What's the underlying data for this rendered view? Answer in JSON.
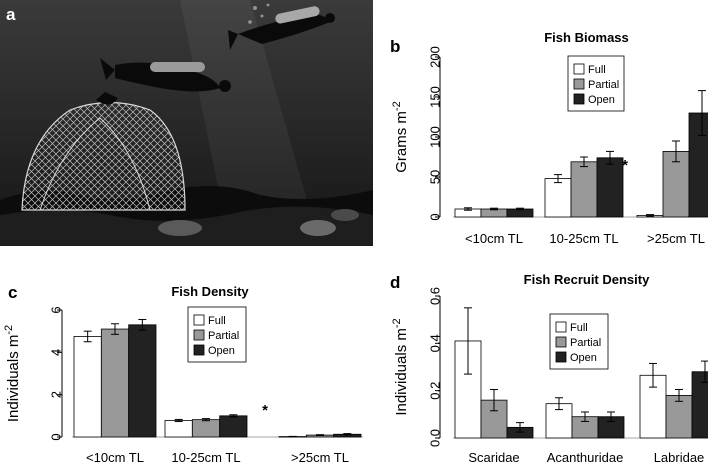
{
  "panels": {
    "a": "a",
    "b": "b",
    "c": "c",
    "d": "d"
  },
  "photo": {
    "description_icon": "underwater-divers-cage-photo"
  },
  "colors": {
    "full": "#ffffff",
    "partial": "#999999",
    "open": "#222222"
  },
  "chart_data": [
    {
      "id": "b",
      "type": "bar",
      "title": "Fish Biomass",
      "ylabel": "Grams m^-2",
      "ylim": [
        0,
        200
      ],
      "yticks": [
        0,
        50,
        100,
        150,
        200
      ],
      "categories": [
        "<10cm TL",
        "10-25cm TL",
        ">25cm TL"
      ],
      "legend": [
        "Full",
        "Partial",
        "Open"
      ],
      "legend_position": "top-left",
      "series": [
        {
          "name": "Full",
          "values": [
            10,
            48,
            2
          ],
          "err": [
            1.5,
            5,
            1
          ]
        },
        {
          "name": "Partial",
          "values": [
            10,
            69,
            82
          ],
          "err": [
            1,
            6,
            13
          ]
        },
        {
          "name": "Open",
          "values": [
            10,
            74,
            130
          ],
          "err": [
            1,
            8,
            28
          ]
        }
      ],
      "annotations": [
        {
          "text": "*",
          "category_index": 2
        }
      ]
    },
    {
      "id": "c",
      "type": "bar",
      "title": "Fish Density",
      "ylabel": "Individuals m^-2",
      "ylim": [
        0,
        6
      ],
      "yticks": [
        0,
        2,
        4,
        6
      ],
      "categories": [
        "<10cm TL",
        "10-25cm TL",
        ">25cm TL"
      ],
      "legend": [
        "Full",
        "Partial",
        "Open"
      ],
      "legend_position": "top-right",
      "series": [
        {
          "name": "Full",
          "values": [
            4.75,
            0.78,
            0.02
          ],
          "err": [
            0.25,
            0.05,
            0.01
          ]
        },
        {
          "name": "Partial",
          "values": [
            5.1,
            0.82,
            0.09
          ],
          "err": [
            0.25,
            0.05,
            0.02
          ]
        },
        {
          "name": "Open",
          "values": [
            5.3,
            1.0,
            0.13
          ],
          "err": [
            0.25,
            0.05,
            0.03
          ]
        }
      ],
      "annotations": [
        {
          "text": "*",
          "category_index": 2
        }
      ]
    },
    {
      "id": "d",
      "type": "bar",
      "title": "Fish Recruit Density",
      "ylabel": "Individuals m^-2",
      "ylim": [
        0,
        0.6
      ],
      "yticks": [
        0.0,
        0.2,
        0.4,
        0.6
      ],
      "categories": [
        "Scaridae",
        "Acanthuridae",
        "Labridae"
      ],
      "legend": [
        "Full",
        "Partial",
        "Open"
      ],
      "legend_position": "top-center",
      "series": [
        {
          "name": "Full",
          "values": [
            0.41,
            0.145,
            0.265
          ],
          "err": [
            0.14,
            0.025,
            0.05
          ]
        },
        {
          "name": "Partial",
          "values": [
            0.16,
            0.09,
            0.18
          ],
          "err": [
            0.045,
            0.02,
            0.025
          ]
        },
        {
          "name": "Open",
          "values": [
            0.045,
            0.09,
            0.28
          ],
          "err": [
            0.02,
            0.02,
            0.045
          ]
        }
      ],
      "annotations": []
    }
  ]
}
